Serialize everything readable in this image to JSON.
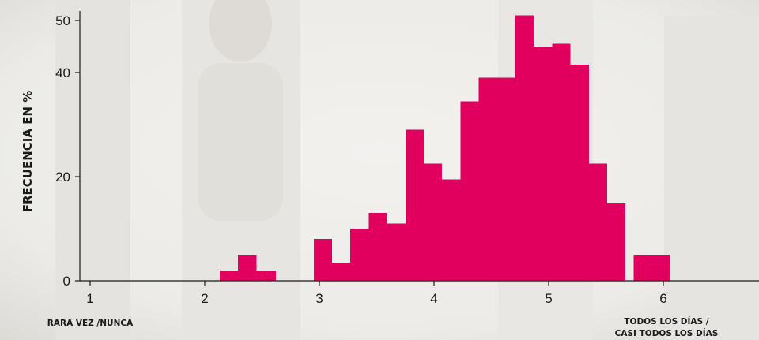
{
  "chart_data": {
    "type": "bar",
    "histogram": true,
    "bar_color": "#e2005f",
    "ylabel": "FRECUENCIA EN %",
    "xlim": [
      1,
      6.8
    ],
    "ylim": [
      0,
      50
    ],
    "x_ticks": [
      1,
      2,
      3,
      4,
      5,
      6
    ],
    "y_ticks": [
      0,
      20,
      40,
      50
    ],
    "x_end_labels": {
      "left": "RARA VEZ /NUNCA",
      "right_line1": "TODOS LOS DÍAS /",
      "right_line2": "CASI TODOS LOS DÍAS"
    },
    "bins": [
      {
        "x0": 2.13,
        "x1": 2.29,
        "value": 2
      },
      {
        "x0": 2.29,
        "x1": 2.45,
        "value": 5
      },
      {
        "x0": 2.45,
        "x1": 2.62,
        "value": 2
      },
      {
        "x0": 2.95,
        "x1": 3.11,
        "value": 8
      },
      {
        "x0": 3.11,
        "x1": 3.27,
        "value": 3.5
      },
      {
        "x0": 3.27,
        "x1": 3.43,
        "value": 10
      },
      {
        "x0": 3.43,
        "x1": 3.59,
        "value": 13
      },
      {
        "x0": 3.59,
        "x1": 3.75,
        "value": 11
      },
      {
        "x0": 3.75,
        "x1": 3.91,
        "value": 29
      },
      {
        "x0": 3.91,
        "x1": 4.07,
        "value": 22.5
      },
      {
        "x0": 4.07,
        "x1": 4.23,
        "value": 19.5
      },
      {
        "x0": 4.23,
        "x1": 4.39,
        "value": 34.5
      },
      {
        "x0": 4.39,
        "x1": 4.55,
        "value": 39
      },
      {
        "x0": 4.55,
        "x1": 4.71,
        "value": 39
      },
      {
        "x0": 4.71,
        "x1": 4.87,
        "value": 51
      },
      {
        "x0": 4.87,
        "x1": 5.03,
        "value": 45
      },
      {
        "x0": 5.03,
        "x1": 5.19,
        "value": 45.5
      },
      {
        "x0": 5.19,
        "x1": 5.35,
        "value": 41.5
      },
      {
        "x0": 5.35,
        "x1": 5.51,
        "value": 22.5
      },
      {
        "x0": 5.51,
        "x1": 5.67,
        "value": 15
      },
      {
        "x0": 5.74,
        "x1": 6.06,
        "value": 5
      }
    ]
  }
}
